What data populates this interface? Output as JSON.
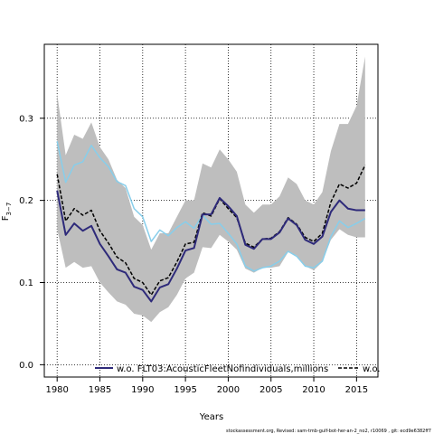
{
  "chart_data": {
    "type": "line",
    "xlabel": "Years",
    "ylabel": "F",
    "ylabel_sub": "3−7",
    "xlim": [
      1978.5,
      2017.5
    ],
    "ylim": [
      -0.015,
      0.39
    ],
    "xticks": [
      1980,
      1985,
      1990,
      1995,
      2000,
      2005,
      2010,
      2015
    ],
    "yticks": [
      0.0,
      0.1,
      0.2,
      0.3
    ],
    "ytick_labels": [
      "0.0",
      "0.1",
      "0.2",
      "0.3"
    ],
    "grid": "dotted",
    "legend_placement": "bottom",
    "years": [
      1980,
      1981,
      1982,
      1983,
      1984,
      1985,
      1986,
      1987,
      1988,
      1989,
      1990,
      1991,
      1992,
      1993,
      1994,
      1995,
      1996,
      1997,
      1998,
      1999,
      2000,
      2001,
      2002,
      2003,
      2004,
      2005,
      2006,
      2007,
      2008,
      2009,
      2010,
      2011,
      2012,
      2013,
      2014,
      2015,
      2016
    ],
    "band": {
      "color": "#bebebe",
      "upper": [
        0.33,
        0.255,
        0.28,
        0.275,
        0.295,
        0.265,
        0.25,
        0.225,
        0.215,
        0.18,
        0.17,
        0.14,
        0.16,
        0.16,
        0.18,
        0.2,
        0.2,
        0.245,
        0.24,
        0.262,
        0.25,
        0.235,
        0.195,
        0.185,
        0.195,
        0.195,
        0.205,
        0.228,
        0.22,
        0.2,
        0.195,
        0.21,
        0.26,
        0.293,
        0.293,
        0.315,
        0.375
      ],
      "lower": [
        0.165,
        0.118,
        0.125,
        0.118,
        0.12,
        0.1,
        0.088,
        0.077,
        0.073,
        0.062,
        0.06,
        0.052,
        0.064,
        0.07,
        0.085,
        0.105,
        0.112,
        0.143,
        0.142,
        0.158,
        0.15,
        0.14,
        0.117,
        0.112,
        0.118,
        0.118,
        0.12,
        0.137,
        0.133,
        0.12,
        0.115,
        0.125,
        0.152,
        0.165,
        0.158,
        0.155,
        0.155
      ]
    },
    "series": [
      {
        "name": "w.o. FLT03:AcousticFleetNofindividuals,millions",
        "color": "#2e2a7a",
        "dash": "solid",
        "width": 2,
        "values": [
          0.212,
          0.158,
          0.172,
          0.163,
          0.169,
          0.147,
          0.132,
          0.116,
          0.112,
          0.095,
          0.091,
          0.077,
          0.094,
          0.098,
          0.117,
          0.139,
          0.142,
          0.183,
          0.183,
          0.203,
          0.193,
          0.181,
          0.146,
          0.141,
          0.153,
          0.153,
          0.161,
          0.178,
          0.17,
          0.152,
          0.147,
          0.156,
          0.186,
          0.2,
          0.19,
          0.188,
          0.188
        ]
      },
      {
        "name": "",
        "color": "#87ceeb",
        "dash": "solid",
        "width": 1.5,
        "values": [
          0.272,
          0.222,
          0.243,
          0.247,
          0.267,
          0.252,
          0.241,
          0.223,
          0.218,
          0.19,
          0.18,
          0.15,
          0.164,
          0.157,
          0.167,
          0.174,
          0.166,
          0.182,
          0.171,
          0.172,
          0.16,
          0.147,
          0.12,
          0.114,
          0.118,
          0.12,
          0.126,
          0.138,
          0.132,
          0.12,
          0.118,
          0.126,
          0.156,
          0.175,
          0.167,
          0.172,
          0.178
        ]
      },
      {
        "name": "w.o.",
        "color": "#000000",
        "dash": "dashed",
        "width": 1.5,
        "values": [
          0.232,
          0.175,
          0.19,
          0.182,
          0.188,
          0.163,
          0.148,
          0.131,
          0.124,
          0.105,
          0.1,
          0.085,
          0.102,
          0.106,
          0.125,
          0.147,
          0.149,
          0.185,
          0.181,
          0.202,
          0.19,
          0.179,
          0.148,
          0.143,
          0.153,
          0.154,
          0.162,
          0.179,
          0.171,
          0.155,
          0.15,
          0.16,
          0.198,
          0.22,
          0.215,
          0.221,
          0.243
        ]
      }
    ],
    "legend": [
      {
        "label": "w.o. FLT03:AcousticFleetNofindividuals,millions",
        "color": "#2e2a7a",
        "dash": "solid"
      },
      {
        "label": "w.o.",
        "color": "#000000",
        "dash": "dashed"
      }
    ]
  },
  "footer": "stockassessment.org, Revised: sam-tmb-gulf-bot-her-an-2_no2, r10069 , git: ecd9e6382ff7"
}
